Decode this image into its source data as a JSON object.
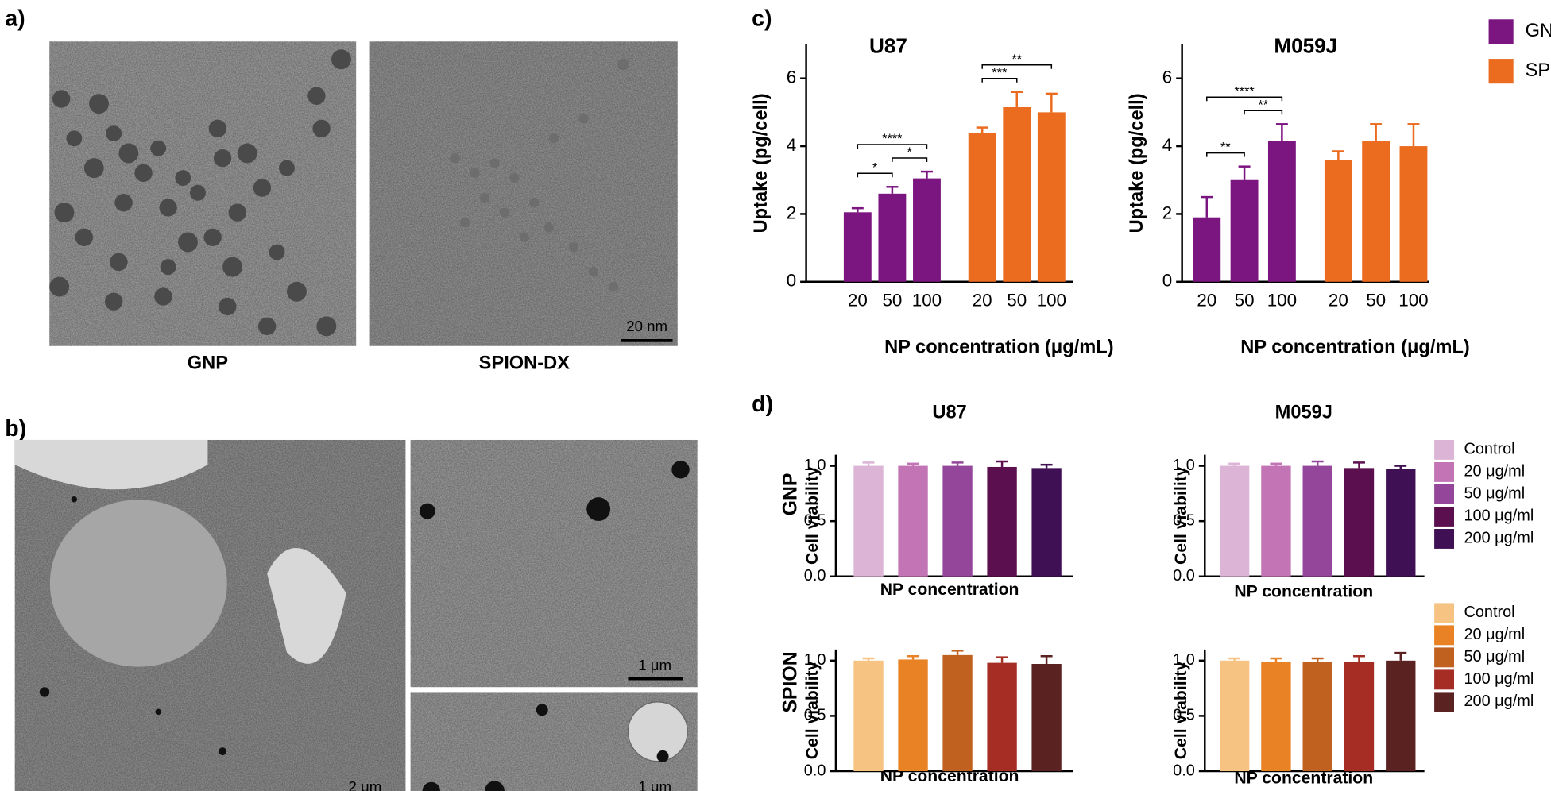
{
  "panel_labels": [
    "a)",
    "b)",
    "c)",
    "d)"
  ],
  "micrographs": {
    "captions": [
      "GNP",
      "SPION-DX"
    ],
    "scale_bars": [
      "20 nm",
      "2 μm",
      "1 μm",
      "1 μm"
    ]
  },
  "row_labels": [
    "GNP",
    "SPION"
  ],
  "chart_data": [
    {
      "type": "bar",
      "title": "U87",
      "ylabel": "Uptake (pg/cell)",
      "xlabel": "NP concentration (μg/mL)",
      "categories": [
        "20",
        "50",
        "100"
      ],
      "series": [
        {
          "name": "GNP-naked",
          "color": "#7b1580",
          "values": [
            2.05,
            2.6,
            3.05
          ],
          "errors": [
            0.12,
            0.2,
            0.2
          ]
        },
        {
          "name": "SPION-DX",
          "color": "#eb6b1f",
          "values": [
            4.4,
            5.15,
            5.0
          ],
          "errors": [
            0.15,
            0.45,
            0.55
          ]
        }
      ],
      "ylim": [
        0,
        7
      ],
      "yticks": [
        0,
        2,
        4,
        6
      ],
      "legend": "upper right",
      "annotations": [
        {
          "between": [
            0,
            1
          ],
          "label": "*"
        },
        {
          "between": [
            1,
            2
          ],
          "label": "*"
        },
        {
          "between": [
            0,
            2
          ],
          "label": "****"
        },
        {
          "between": [
            3,
            4
          ],
          "label": "***"
        },
        {
          "between": [
            3,
            5
          ],
          "label": "**"
        }
      ]
    },
    {
      "type": "bar",
      "title": "M059J",
      "ylabel": "Uptake (pg/cell)",
      "xlabel": "NP concentration (μg/mL)",
      "categories": [
        "20",
        "50",
        "100"
      ],
      "series": [
        {
          "color": "#7b1580",
          "values": [
            1.9,
            3.0,
            4.15
          ],
          "errors": [
            0.6,
            0.4,
            0.5
          ]
        },
        {
          "color": "#eb6b1f",
          "values": [
            3.6,
            4.15,
            4.0
          ],
          "errors": [
            0.25,
            0.5,
            0.65
          ]
        }
      ],
      "ylim": [
        0,
        7
      ],
      "yticks": [
        0,
        2,
        4,
        6
      ],
      "annotations": [
        {
          "between": [
            0,
            1
          ],
          "label": "**"
        },
        {
          "between": [
            1,
            2
          ],
          "label": "**"
        },
        {
          "between": [
            0,
            2
          ],
          "label": "****"
        }
      ]
    },
    {
      "type": "bar",
      "title": "U87",
      "ylabel": "Cell viability",
      "xlabel": "NP concentration",
      "categories": [
        "Control",
        "20 μg/ml",
        "50 μg/ml",
        "100 μg/ml",
        "200 μg/ml"
      ],
      "colors": [
        "#dcb4d6",
        "#c274b4",
        "#94479a",
        "#5c0f4e",
        "#3f1054"
      ],
      "values": [
        1.0,
        1.0,
        1.0,
        0.99,
        0.98
      ],
      "errors": [
        0.03,
        0.02,
        0.03,
        0.05,
        0.03
      ],
      "ylim": [
        0,
        1.1
      ],
      "yticks": [
        {
          "value": 0,
          "label": "0.0"
        },
        {
          "value": 0.5,
          "label": "0.5"
        },
        {
          "value": 1,
          "label": "1.0"
        }
      ],
      "legend": "right"
    },
    {
      "type": "bar",
      "title": "M059J",
      "ylabel": "Cell viability",
      "xlabel": "NP concentration",
      "colors": [
        "#dcb4d6",
        "#c274b4",
        "#94479a",
        "#5c0f4e",
        "#3f1054"
      ],
      "values": [
        1.0,
        1.0,
        1.0,
        0.98,
        0.97
      ],
      "errors": [
        0.02,
        0.02,
        0.04,
        0.05,
        0.03
      ],
      "ylim": [
        0,
        1.1
      ],
      "yticks": [
        {
          "value": 0,
          "label": "0.0"
        },
        {
          "value": 0.5,
          "label": "0.5"
        },
        {
          "value": 1,
          "label": "1.0"
        }
      ]
    },
    {
      "type": "bar",
      "ylabel": "Cell viability",
      "xlabel": "NP concentration",
      "categories": [
        "Control",
        "20 μg/ml",
        "50 μg/ml",
        "100 μg/ml",
        "200 μg/ml"
      ],
      "colors": [
        "#f7c383",
        "#e98224",
        "#c0611f",
        "#a52d24",
        "#5a2220"
      ],
      "values": [
        1.0,
        1.01,
        1.05,
        0.98,
        0.97
      ],
      "errors": [
        0.02,
        0.03,
        0.04,
        0.05,
        0.07
      ],
      "ylim": [
        0,
        1.1
      ],
      "yticks": [
        {
          "value": 0,
          "label": "0.0"
        },
        {
          "value": 0.5,
          "label": "0.5"
        },
        {
          "value": 1,
          "label": "1.0"
        }
      ],
      "legend": "right"
    },
    {
      "type": "bar",
      "ylabel": "Cell viability",
      "xlabel": "NP concentration",
      "colors": [
        "#f7c383",
        "#e98224",
        "#c0611f",
        "#a52d24",
        "#5a2220"
      ],
      "values": [
        1.0,
        0.99,
        0.99,
        0.99,
        1.0
      ],
      "errors": [
        0.02,
        0.03,
        0.03,
        0.05,
        0.07
      ],
      "ylim": [
        0,
        1.1
      ],
      "yticks": [
        {
          "value": 0,
          "label": "0.0"
        },
        {
          "value": 0.5,
          "label": "0.5"
        },
        {
          "value": 1,
          "label": "1.0"
        }
      ]
    }
  ]
}
